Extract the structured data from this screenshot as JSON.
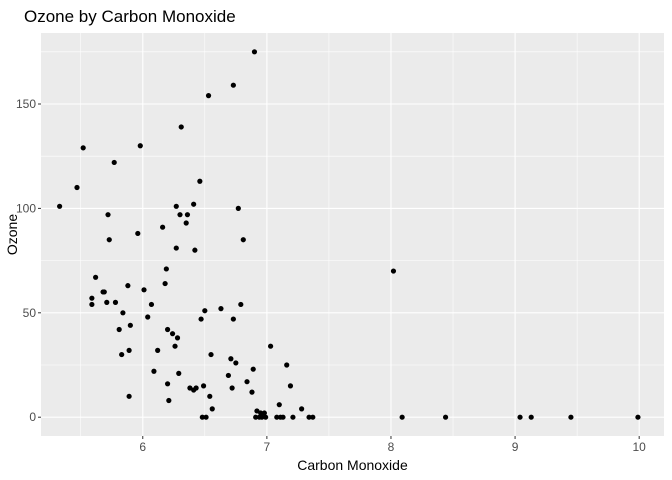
{
  "chart_data": {
    "type": "scatter",
    "title": "Ozone by Carbon Monoxide",
    "xlabel": "Carbon Monoxide",
    "ylabel": "Ozone",
    "xlim": [
      5.18,
      10.2
    ],
    "ylim": [
      -9,
      184
    ],
    "x_ticks": [
      6,
      7,
      8,
      9,
      10
    ],
    "y_ticks": [
      0,
      50,
      100,
      150
    ],
    "grid": true,
    "colors": {
      "panel": "#ebebeb",
      "grid_major": "#ffffff",
      "point": "#000000",
      "tick_label": "#4d4d4d"
    },
    "points": [
      {
        "x": 5.33,
        "y": 101
      },
      {
        "x": 5.47,
        "y": 110
      },
      {
        "x": 5.52,
        "y": 129
      },
      {
        "x": 5.59,
        "y": 57
      },
      {
        "x": 5.59,
        "y": 54
      },
      {
        "x": 5.62,
        "y": 67
      },
      {
        "x": 5.68,
        "y": 60
      },
      {
        "x": 5.69,
        "y": 60
      },
      {
        "x": 5.71,
        "y": 55
      },
      {
        "x": 5.72,
        "y": 97
      },
      {
        "x": 5.73,
        "y": 85
      },
      {
        "x": 5.77,
        "y": 122
      },
      {
        "x": 5.78,
        "y": 55
      },
      {
        "x": 5.81,
        "y": 42
      },
      {
        "x": 5.83,
        "y": 30
      },
      {
        "x": 5.84,
        "y": 50
      },
      {
        "x": 5.88,
        "y": 63
      },
      {
        "x": 5.89,
        "y": 32
      },
      {
        "x": 5.9,
        "y": 44
      },
      {
        "x": 5.89,
        "y": 10
      },
      {
        "x": 5.96,
        "y": 88
      },
      {
        "x": 5.98,
        "y": 130
      },
      {
        "x": 6.01,
        "y": 61
      },
      {
        "x": 6.04,
        "y": 48
      },
      {
        "x": 6.07,
        "y": 54
      },
      {
        "x": 6.09,
        "y": 22
      },
      {
        "x": 6.12,
        "y": 32
      },
      {
        "x": 6.16,
        "y": 91
      },
      {
        "x": 6.18,
        "y": 64
      },
      {
        "x": 6.19,
        "y": 71
      },
      {
        "x": 6.2,
        "y": 42
      },
      {
        "x": 6.2,
        "y": 16
      },
      {
        "x": 6.21,
        "y": 8
      },
      {
        "x": 6.24,
        "y": 40
      },
      {
        "x": 6.26,
        "y": 34
      },
      {
        "x": 6.27,
        "y": 101
      },
      {
        "x": 6.27,
        "y": 81
      },
      {
        "x": 6.28,
        "y": 38
      },
      {
        "x": 6.29,
        "y": 21
      },
      {
        "x": 6.3,
        "y": 97
      },
      {
        "x": 6.31,
        "y": 139
      },
      {
        "x": 6.35,
        "y": 93
      },
      {
        "x": 6.36,
        "y": 97
      },
      {
        "x": 6.38,
        "y": 14
      },
      {
        "x": 6.41,
        "y": 102
      },
      {
        "x": 6.41,
        "y": 13
      },
      {
        "x": 6.42,
        "y": 80
      },
      {
        "x": 6.43,
        "y": 14
      },
      {
        "x": 6.46,
        "y": 113
      },
      {
        "x": 6.47,
        "y": 47
      },
      {
        "x": 6.48,
        "y": 0
      },
      {
        "x": 6.49,
        "y": 15
      },
      {
        "x": 6.5,
        "y": 51
      },
      {
        "x": 6.51,
        "y": 0
      },
      {
        "x": 6.53,
        "y": 154
      },
      {
        "x": 6.54,
        "y": 10
      },
      {
        "x": 6.55,
        "y": 30
      },
      {
        "x": 6.56,
        "y": 4
      },
      {
        "x": 6.63,
        "y": 52
      },
      {
        "x": 6.69,
        "y": 20
      },
      {
        "x": 6.71,
        "y": 28
      },
      {
        "x": 6.72,
        "y": 14
      },
      {
        "x": 6.73,
        "y": 47
      },
      {
        "x": 6.73,
        "y": 159
      },
      {
        "x": 6.75,
        "y": 26
      },
      {
        "x": 6.77,
        "y": 100
      },
      {
        "x": 6.79,
        "y": 54
      },
      {
        "x": 6.81,
        "y": 85
      },
      {
        "x": 6.84,
        "y": 17
      },
      {
        "x": 6.88,
        "y": 12
      },
      {
        "x": 6.89,
        "y": 23
      },
      {
        "x": 6.9,
        "y": 175
      },
      {
        "x": 6.91,
        "y": 0
      },
      {
        "x": 6.92,
        "y": 3
      },
      {
        "x": 6.94,
        "y": 0
      },
      {
        "x": 6.95,
        "y": 2
      },
      {
        "x": 6.96,
        "y": 0
      },
      {
        "x": 6.98,
        "y": 2
      },
      {
        "x": 6.99,
        "y": 0
      },
      {
        "x": 7.03,
        "y": 34
      },
      {
        "x": 7.08,
        "y": 0
      },
      {
        "x": 7.1,
        "y": 6
      },
      {
        "x": 7.11,
        "y": 0
      },
      {
        "x": 7.13,
        "y": 0
      },
      {
        "x": 7.16,
        "y": 25
      },
      {
        "x": 7.19,
        "y": 15
      },
      {
        "x": 7.21,
        "y": 0
      },
      {
        "x": 7.28,
        "y": 4
      },
      {
        "x": 7.34,
        "y": 0
      },
      {
        "x": 7.37,
        "y": 0
      },
      {
        "x": 8.02,
        "y": 70
      },
      {
        "x": 8.09,
        "y": 0
      },
      {
        "x": 8.44,
        "y": 0
      },
      {
        "x": 9.04,
        "y": 0
      },
      {
        "x": 9.13,
        "y": 0
      },
      {
        "x": 9.45,
        "y": 0
      },
      {
        "x": 9.99,
        "y": 0
      }
    ]
  }
}
